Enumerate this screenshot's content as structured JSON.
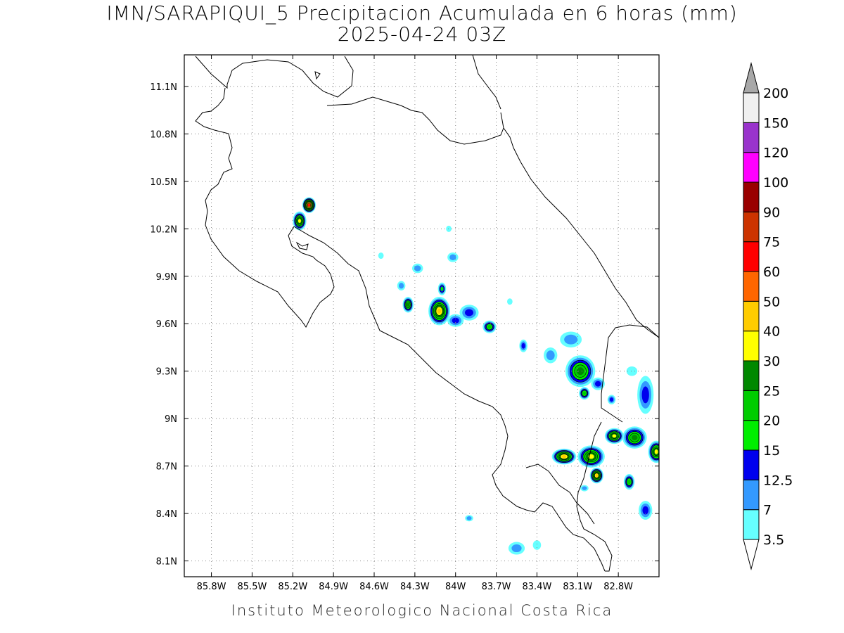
{
  "title": {
    "line1": "IMN/SARAPIQUI_5 Precipitacion Acumulada en 6 horas (mm)",
    "line2": "2025-04-24 03Z"
  },
  "footer": "Instituto Meteorologico Nacional Costa Rica",
  "map": {
    "lon_range": [
      -86.0,
      -82.5
    ],
    "lat_range": [
      8.0,
      11.3
    ],
    "x_ticks": [
      "85.8W",
      "85.5W",
      "85.2W",
      "84.9W",
      "84.6W",
      "84.3W",
      "84W",
      "83.7W",
      "83.4W",
      "83.1W",
      "82.8W"
    ],
    "y_ticks": [
      "11.1N",
      "10.8N",
      "10.5N",
      "10.2N",
      "9.9N",
      "9.6N",
      "9.3N",
      "9N",
      "8.7N",
      "8.4N",
      "8.1N"
    ],
    "grid": "dotted"
  },
  "colorbar": {
    "labels": [
      "3.5",
      "7",
      "12.5",
      "15",
      "20",
      "25",
      "30",
      "40",
      "50",
      "60",
      "75",
      "90",
      "100",
      "120",
      "150",
      "200"
    ],
    "colors": [
      "#ffffff",
      "#66ffff",
      "#3399ff",
      "#0000ee",
      "#00ee00",
      "#00cc00",
      "#008800",
      "#ffff00",
      "#ffcc00",
      "#ff6600",
      "#ff0000",
      "#cc3300",
      "#990000",
      "#ff00ff",
      "#9933cc",
      "#f0f0f0"
    ],
    "top_arrow_color": "#a8a8a8",
    "bottom_arrow_color": "#ffffff"
  },
  "precip_cells": [
    {
      "lon": -85.08,
      "lat": 10.35,
      "rx": 0.05,
      "ry": 0.05,
      "max": 60
    },
    {
      "lon": -85.15,
      "lat": 10.25,
      "rx": 0.05,
      "ry": 0.06,
      "max": 30
    },
    {
      "lon": -84.35,
      "lat": 9.72,
      "rx": 0.04,
      "ry": 0.05,
      "max": 25
    },
    {
      "lon": -84.12,
      "lat": 9.68,
      "rx": 0.08,
      "ry": 0.09,
      "max": 40
    },
    {
      "lon": -84.1,
      "lat": 9.82,
      "rx": 0.03,
      "ry": 0.04,
      "max": 15
    },
    {
      "lon": -83.9,
      "lat": 9.67,
      "rx": 0.07,
      "ry": 0.05,
      "max": 12.5
    },
    {
      "lon": -83.75,
      "lat": 9.58,
      "rx": 0.05,
      "ry": 0.04,
      "max": 20
    },
    {
      "lon": -84.0,
      "lat": 9.62,
      "rx": 0.06,
      "ry": 0.04,
      "max": 12.5
    },
    {
      "lon": -84.28,
      "lat": 9.95,
      "rx": 0.04,
      "ry": 0.03,
      "max": 7
    },
    {
      "lon": -84.4,
      "lat": 9.84,
      "rx": 0.03,
      "ry": 0.03,
      "max": 7
    },
    {
      "lon": -84.02,
      "lat": 10.02,
      "rx": 0.04,
      "ry": 0.03,
      "max": 7
    },
    {
      "lon": -84.05,
      "lat": 10.2,
      "rx": 0.02,
      "ry": 0.02,
      "max": 3.5
    },
    {
      "lon": -83.5,
      "lat": 9.46,
      "rx": 0.03,
      "ry": 0.04,
      "max": 12.5
    },
    {
      "lon": -83.15,
      "lat": 9.5,
      "rx": 0.08,
      "ry": 0.05,
      "max": 7
    },
    {
      "lon": -83.08,
      "lat": 9.3,
      "rx": 0.11,
      "ry": 0.1,
      "max": 25
    },
    {
      "lon": -83.05,
      "lat": 9.16,
      "rx": 0.04,
      "ry": 0.04,
      "max": 20
    },
    {
      "lon": -83.3,
      "lat": 9.4,
      "rx": 0.05,
      "ry": 0.05,
      "max": 7
    },
    {
      "lon": -82.95,
      "lat": 9.22,
      "rx": 0.05,
      "ry": 0.04,
      "max": 12.5
    },
    {
      "lon": -82.85,
      "lat": 9.12,
      "rx": 0.03,
      "ry": 0.03,
      "max": 12.5
    },
    {
      "lon": -82.7,
      "lat": 9.3,
      "rx": 0.04,
      "ry": 0.03,
      "max": 3.5
    },
    {
      "lon": -82.6,
      "lat": 9.15,
      "rx": 0.06,
      "ry": 0.12,
      "max": 12.5
    },
    {
      "lon": -83.2,
      "lat": 8.76,
      "rx": 0.09,
      "ry": 0.05,
      "max": 40
    },
    {
      "lon": -83.0,
      "lat": 8.76,
      "rx": 0.1,
      "ry": 0.07,
      "max": 30
    },
    {
      "lon": -82.96,
      "lat": 8.64,
      "rx": 0.05,
      "ry": 0.05,
      "max": 40
    },
    {
      "lon": -82.83,
      "lat": 8.89,
      "rx": 0.07,
      "ry": 0.05,
      "max": 30
    },
    {
      "lon": -82.68,
      "lat": 8.88,
      "rx": 0.09,
      "ry": 0.07,
      "max": 25
    },
    {
      "lon": -82.52,
      "lat": 8.79,
      "rx": 0.06,
      "ry": 0.07,
      "max": 30
    },
    {
      "lon": -82.72,
      "lat": 8.6,
      "rx": 0.04,
      "ry": 0.05,
      "max": 20
    },
    {
      "lon": -82.6,
      "lat": 8.42,
      "rx": 0.05,
      "ry": 0.06,
      "max": 12.5
    },
    {
      "lon": -83.05,
      "lat": 8.56,
      "rx": 0.03,
      "ry": 0.02,
      "max": 7
    },
    {
      "lon": -83.6,
      "lat": 9.74,
      "rx": 0.02,
      "ry": 0.02,
      "max": 3.5
    },
    {
      "lon": -83.9,
      "lat": 8.37,
      "rx": 0.03,
      "ry": 0.02,
      "max": 7
    },
    {
      "lon": -83.55,
      "lat": 8.18,
      "rx": 0.06,
      "ry": 0.04,
      "max": 7
    },
    {
      "lon": -83.4,
      "lat": 8.2,
      "rx": 0.03,
      "ry": 0.03,
      "max": 3.5
    },
    {
      "lon": -84.55,
      "lat": 10.03,
      "rx": 0.02,
      "ry": 0.02,
      "max": 3.5
    }
  ]
}
